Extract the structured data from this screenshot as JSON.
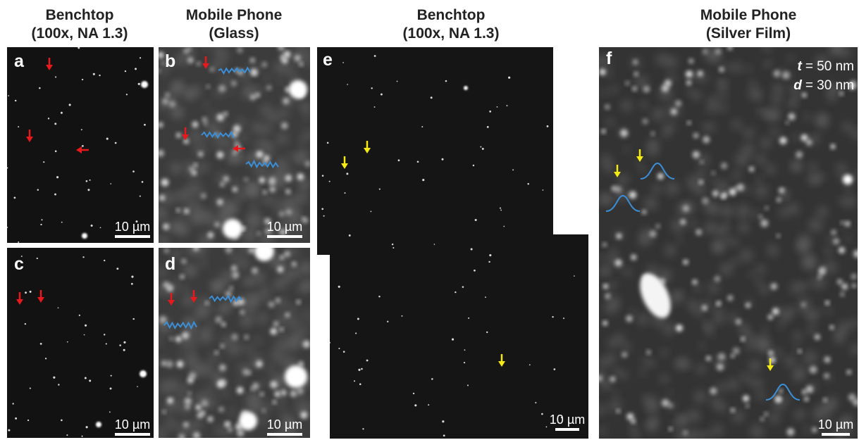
{
  "headers": [
    {
      "line1": "Benchtop",
      "line2": "(100x, NA 1.3)"
    },
    {
      "line1": "Mobile Phone",
      "line2": "(Glass)"
    },
    {
      "line1": "Benchtop",
      "line2": "(100x, NA 1.3)"
    },
    {
      "line1": "Mobile Phone",
      "line2": "(Silver Film)"
    }
  ],
  "panels": [
    {
      "label": "a",
      "scale_bar": "10 µm"
    },
    {
      "label": "b",
      "scale_bar": "10 µm"
    },
    {
      "label": "c",
      "scale_bar": "10 µm"
    },
    {
      "label": "d",
      "scale_bar": "10 µm"
    },
    {
      "label": "e",
      "scale_bar": "10 µm"
    },
    {
      "label": "f",
      "scale_bar": "10 µm"
    }
  ],
  "annotations": [
    {
      "symbol": "t",
      "text": "= 50 nm"
    },
    {
      "symbol": "d",
      "text": "= 30 nm"
    }
  ]
}
